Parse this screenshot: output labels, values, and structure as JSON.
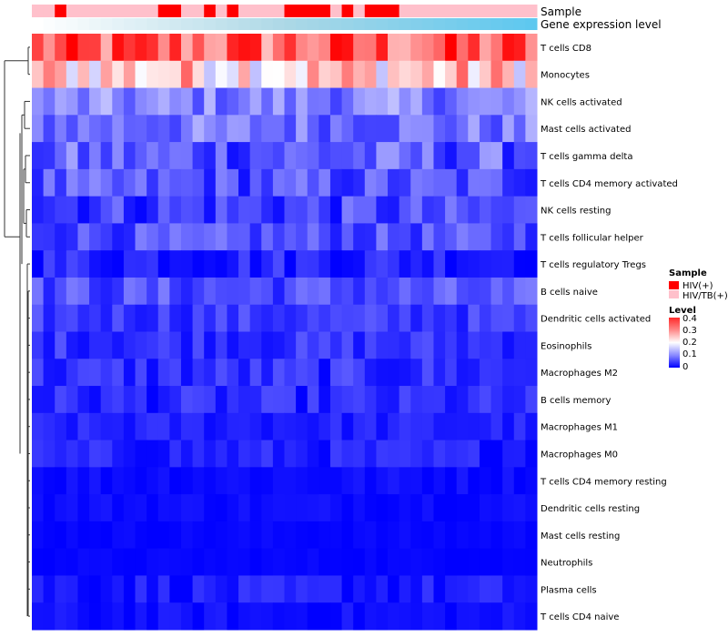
{
  "chart_data": {
    "type": "heatmap",
    "annotation_labels": [
      "Sample",
      "Gene expression level"
    ],
    "rows": [
      "T cells CD8",
      "Monocytes",
      "NK cells activated",
      "Mast cells activated",
      "T cells gamma delta",
      "T cells CD4 memory activated",
      "NK cells resting",
      "T cells follicular helper",
      "T cells regulatory  Tregs",
      "B cells naive",
      "Dendritic cells activated",
      "Eosinophils",
      "Macrophages M2",
      "B cells memory",
      "Macrophages M1",
      "Macrophages M0",
      "T cells CD4 memory resting",
      "Dendritic cells resting",
      "Mast cells resting",
      "Neutrophils",
      "Plasma cells",
      "T cells CD4 naive"
    ],
    "n_samples": 44,
    "sample_groups": [
      1,
      1,
      0,
      1,
      1,
      1,
      1,
      1,
      1,
      1,
      1,
      0,
      0,
      1,
      1,
      0,
      1,
      0,
      1,
      1,
      1,
      1,
      0,
      0,
      0,
      0,
      1,
      0,
      1,
      0,
      0,
      0,
      1,
      1,
      1,
      1,
      1,
      1,
      1,
      1,
      1,
      1,
      1,
      1
    ],
    "sample_colors": [
      "#ff0000",
      "#ffc0cb"
    ],
    "gene_expression_gradient": [
      "#ffffff",
      "#add8e6",
      "#5ec8ef"
    ],
    "row_base_values": [
      0.32,
      0.24,
      0.1,
      0.09,
      0.07,
      0.06,
      0.05,
      0.06,
      0.03,
      0.06,
      0.045,
      0.04,
      0.035,
      0.03,
      0.025,
      0.025,
      0.01,
      0.01,
      0.005,
      0.004,
      0.02,
      0.01
    ],
    "row_variation": [
      0.09,
      0.09,
      0.05,
      0.05,
      0.06,
      0.05,
      0.05,
      0.04,
      0.035,
      0.04,
      0.03,
      0.03,
      0.035,
      0.03,
      0.02,
      0.025,
      0.012,
      0.01,
      0.006,
      0.005,
      0.025,
      0.015
    ],
    "value_range": [
      0,
      0.4
    ],
    "color_scale": [
      "#0000ff",
      "#ffffff",
      "#ff0000"
    ],
    "legend": {
      "sample_title": "Sample",
      "sample_entries": [
        "HIV(+)",
        "HIV/TB(+)"
      ],
      "level_title": "Level",
      "level_ticks": [
        "0.4",
        "0.3",
        "0.2",
        "0.1",
        "0"
      ]
    }
  }
}
